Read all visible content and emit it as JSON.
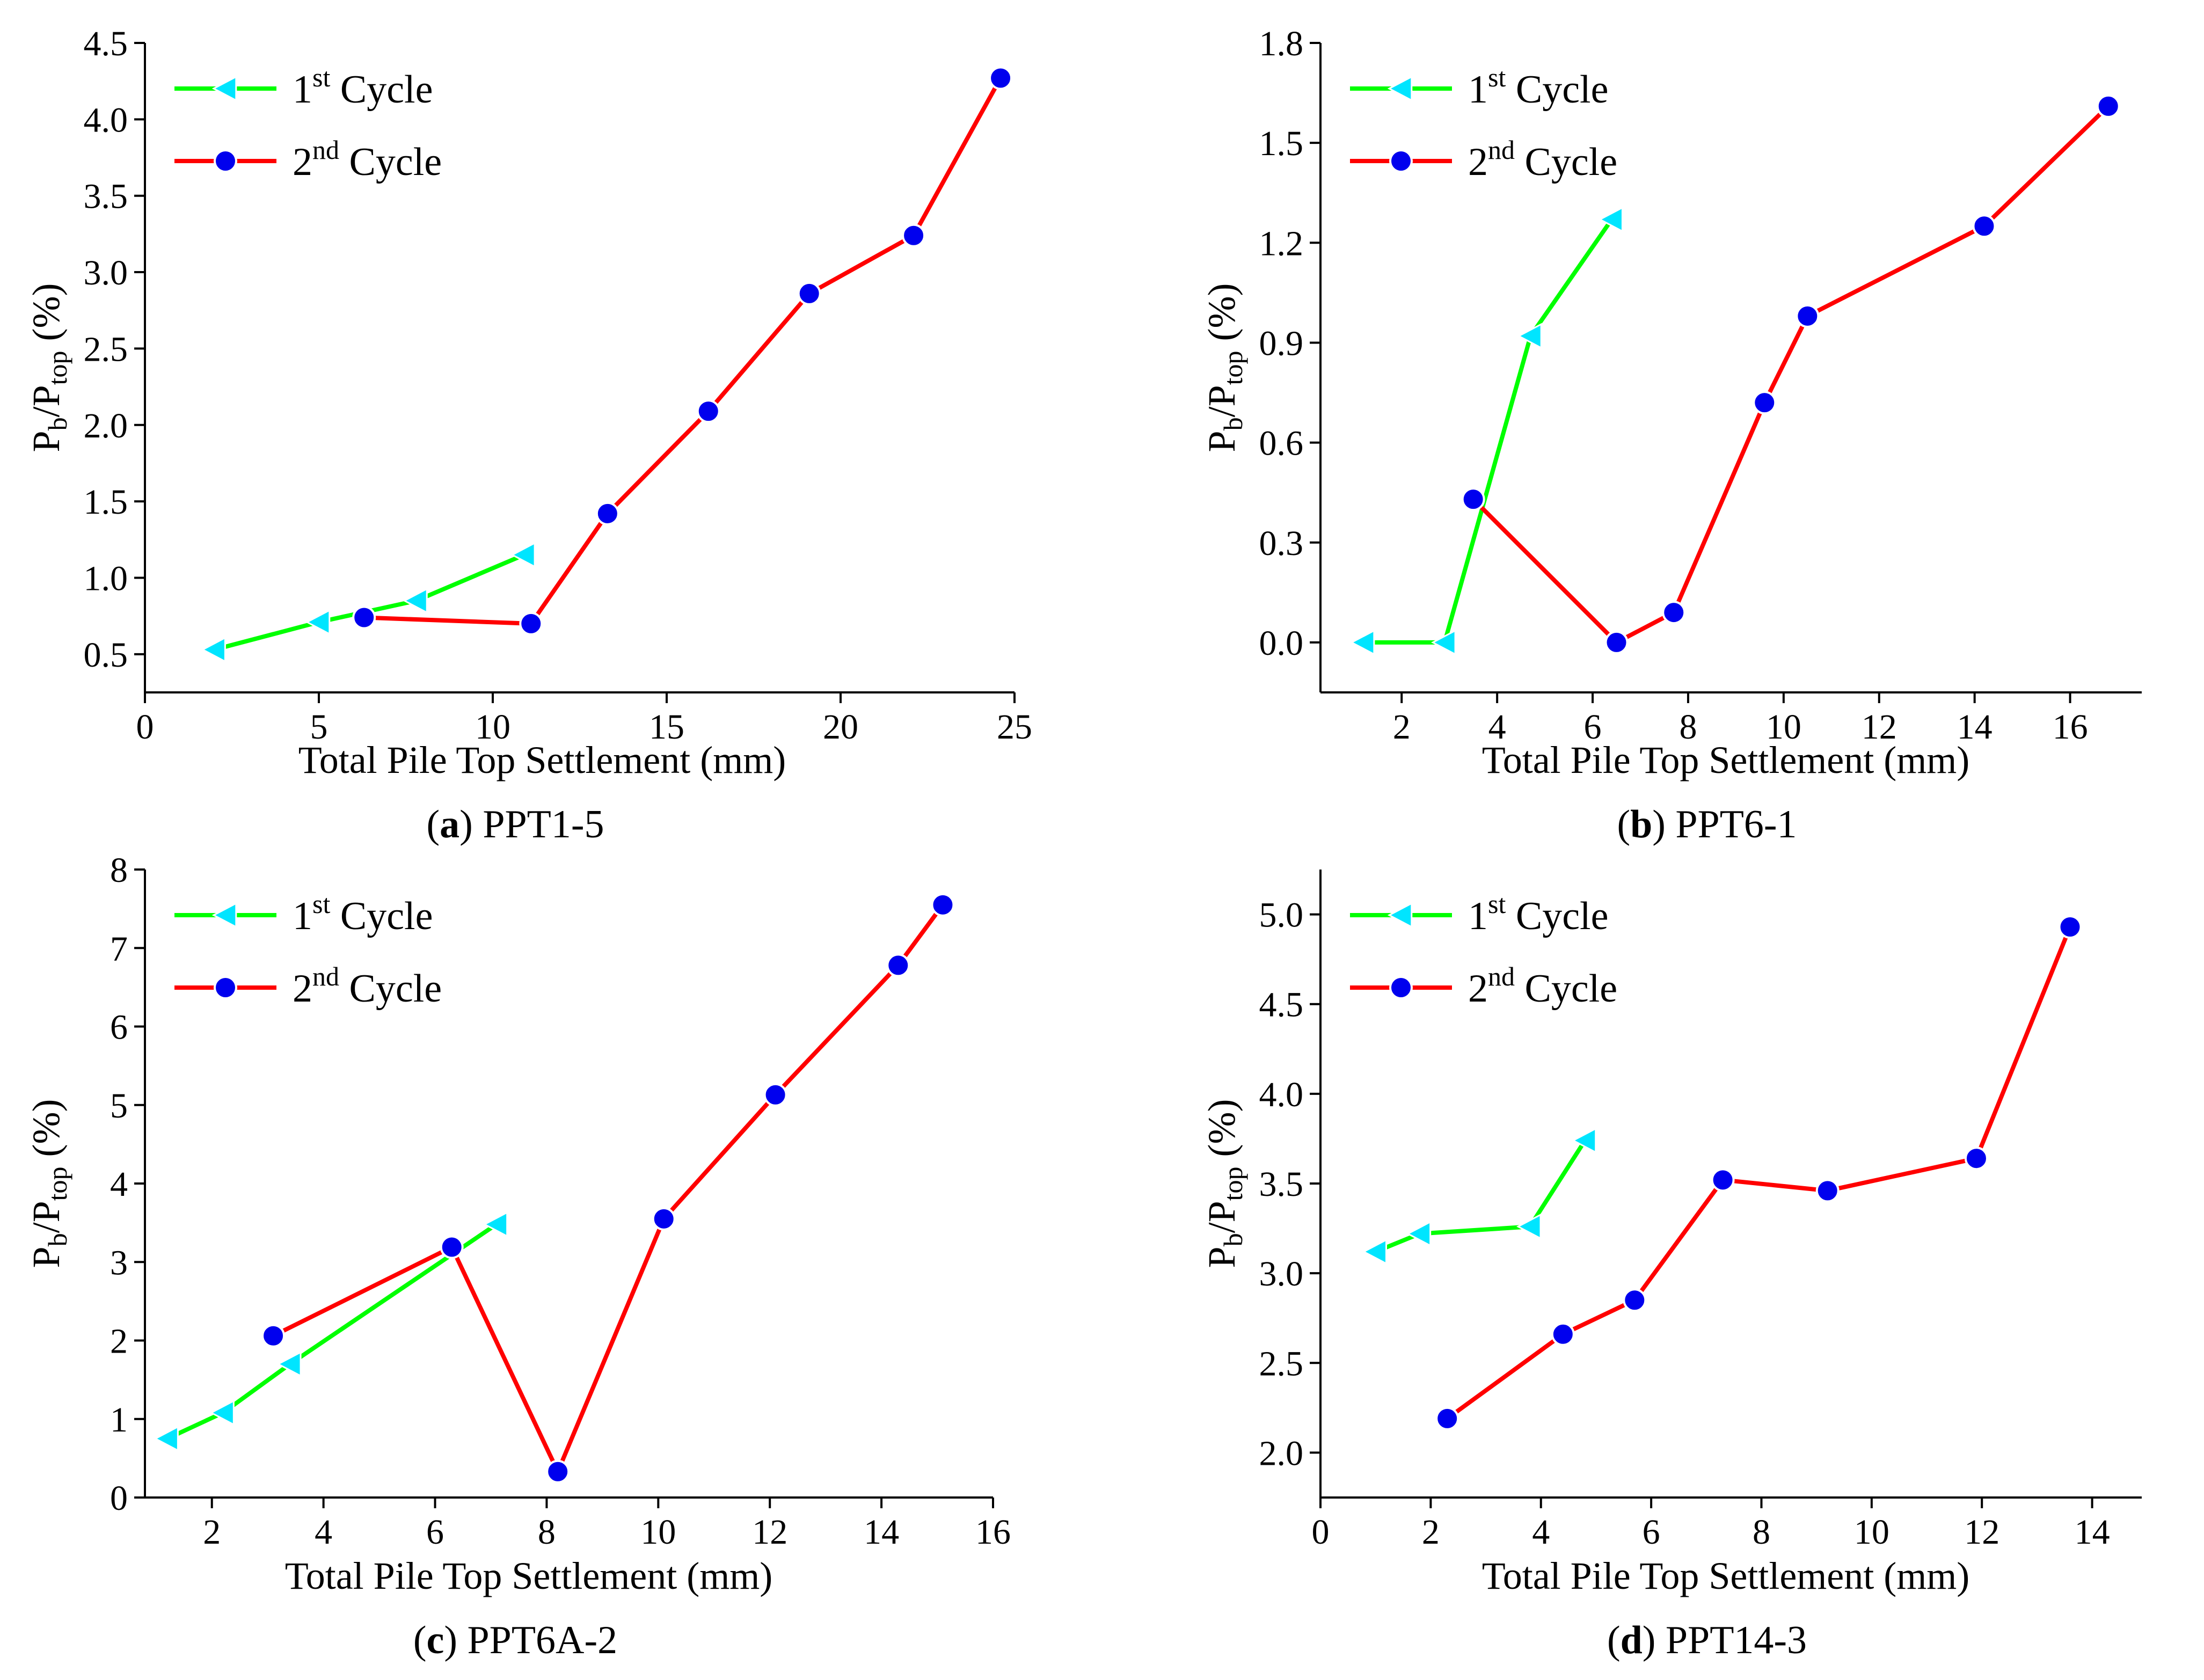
{
  "colors": {
    "cycle1_line": "#00ff00",
    "cycle1_marker": "#00e5ff",
    "cycle2_line": "#ff0000",
    "cycle2_marker": "#0000ee"
  },
  "chart_data": [
    {
      "id": "a",
      "type": "line",
      "caption_letter": "(a)",
      "caption_name": "PPT1-5",
      "xlabel": "Total Pile Top Settlement (mm)",
      "ylabel": {
        "main": "P",
        "sub1": "b",
        "sep": "/P",
        "sub2": "top",
        "unit": " (%)"
      },
      "xlim": [
        0,
        25
      ],
      "ylim": [
        0.25,
        4.5
      ],
      "xticks": [
        0,
        5,
        10,
        15,
        20,
        25
      ],
      "xtick_labels": [
        "0",
        "5",
        "10",
        "15",
        "20",
        "25"
      ],
      "yticks": [
        0.5,
        1.0,
        1.5,
        2.0,
        2.5,
        3.0,
        3.5,
        4.0,
        4.5
      ],
      "ytick_labels": [
        "0.5",
        "1.0",
        "1.5",
        "2.0",
        "2.5",
        "3.0",
        "3.5",
        "4.0",
        "4.5"
      ],
      "legend": {
        "position": "top-left",
        "entries": [
          {
            "base": "1",
            "sup": "st",
            "text": " Cycle"
          },
          {
            "base": "2",
            "sup": "nd",
            "text": " Cycle"
          }
        ]
      },
      "series": [
        {
          "name": "1st Cycle",
          "marker": "triangle-left",
          "x": [
            2.0,
            5.0,
            7.8,
            10.9
          ],
          "y": [
            0.53,
            0.71,
            0.85,
            1.15
          ]
        },
        {
          "name": "2nd Cycle",
          "marker": "circle",
          "x": [
            6.3,
            11.1,
            13.3,
            16.2,
            19.1,
            22.1,
            24.6
          ],
          "y": [
            0.74,
            0.7,
            1.42,
            2.09,
            2.86,
            3.24,
            4.27
          ]
        }
      ]
    },
    {
      "id": "b",
      "type": "line",
      "caption_letter": "(b)",
      "caption_name": "PPT6-1",
      "xlabel": "Total Pile Top Settlement (mm)",
      "ylabel": {
        "main": "P",
        "sub1": "b",
        "sep": "/P",
        "sub2": "top",
        "unit": " (%)"
      },
      "xlim": [
        0.3,
        17.5
      ],
      "ylim": [
        -0.15,
        1.8
      ],
      "xticks": [
        2,
        4,
        6,
        8,
        10,
        12,
        14,
        16
      ],
      "xtick_labels": [
        "2",
        "4",
        "6",
        "8",
        "10",
        "12",
        "14",
        "16"
      ],
      "yticks": [
        0.0,
        0.3,
        0.6,
        0.9,
        1.2,
        1.5,
        1.8
      ],
      "ytick_labels": [
        "0.0",
        "0.3",
        "0.6",
        "0.9",
        "1.2",
        "1.5",
        "1.8"
      ],
      "legend": {
        "position": "top-left",
        "entries": [
          {
            "base": "1",
            "sup": "st",
            "text": " Cycle"
          },
          {
            "base": "2",
            "sup": "nd",
            "text": " Cycle"
          }
        ]
      },
      "series": [
        {
          "name": "1st Cycle",
          "marker": "triangle-left",
          "x": [
            1.2,
            2.9,
            4.7,
            6.4
          ],
          "y": [
            0.0,
            0.0,
            0.92,
            1.27
          ]
        },
        {
          "name": "2nd Cycle",
          "marker": "circle",
          "x": [
            3.5,
            6.5,
            7.7,
            9.6,
            10.5,
            14.2,
            16.8
          ],
          "y": [
            0.43,
            0.0,
            0.09,
            0.72,
            0.98,
            1.25,
            1.61
          ]
        }
      ]
    },
    {
      "id": "c",
      "type": "line",
      "caption_letter": "(c)",
      "caption_name": "PPT6A-2",
      "xlabel": "Total Pile Top Settlement (mm)",
      "ylabel": {
        "main": "P",
        "sub1": "b",
        "sep": "/P",
        "sub2": "top",
        "unit": " (%)"
      },
      "xlim": [
        0.8,
        16
      ],
      "ylim": [
        0,
        8
      ],
      "xticks": [
        2,
        4,
        6,
        8,
        10,
        12,
        14,
        16
      ],
      "xtick_labels": [
        "2",
        "4",
        "6",
        "8",
        "10",
        "12",
        "14",
        "16"
      ],
      "yticks": [
        0,
        1,
        2,
        3,
        4,
        5,
        6,
        7,
        8
      ],
      "ytick_labels": [
        "0",
        "1",
        "2",
        "3",
        "4",
        "5",
        "6",
        "7",
        "8"
      ],
      "legend": {
        "position": "top-left",
        "entries": [
          {
            "base": "1",
            "sup": "st",
            "text": " Cycle"
          },
          {
            "base": "2",
            "sup": "nd",
            "text": " Cycle"
          }
        ]
      },
      "series": [
        {
          "name": "1st Cycle",
          "marker": "triangle-left",
          "x": [
            1.2,
            2.2,
            3.4,
            7.1
          ],
          "y": [
            0.75,
            1.08,
            1.7,
            3.48
          ]
        },
        {
          "name": "2nd Cycle",
          "marker": "circle",
          "x": [
            3.1,
            6.3,
            8.2,
            10.1,
            12.1,
            14.3,
            15.1
          ],
          "y": [
            2.06,
            3.19,
            0.33,
            3.55,
            5.13,
            6.78,
            7.55
          ]
        }
      ]
    },
    {
      "id": "d",
      "type": "line",
      "caption_letter": "(d)",
      "caption_name": "PPT14-3",
      "xlabel": "Total Pile Top Settlement (mm)",
      "ylabel": {
        "main": "P",
        "sub1": "b",
        "sep": "/P",
        "sub2": "top",
        "unit": " (%)"
      },
      "xlim": [
        0,
        14.9
      ],
      "ylim": [
        1.75,
        5.25
      ],
      "xticks": [
        0,
        2,
        4,
        6,
        8,
        10,
        12,
        14
      ],
      "xtick_labels": [
        "0",
        "2",
        "4",
        "6",
        "8",
        "10",
        "12",
        "14"
      ],
      "yticks": [
        2.0,
        2.5,
        3.0,
        3.5,
        4.0,
        4.5,
        5.0
      ],
      "ytick_labels": [
        "2.0",
        "2.5",
        "3.0",
        "3.5",
        "4.0",
        "4.5",
        "5.0"
      ],
      "legend": {
        "position": "top-left",
        "entries": [
          {
            "base": "1",
            "sup": "st",
            "text": " Cycle"
          },
          {
            "base": "2",
            "sup": "nd",
            "text": " Cycle"
          }
        ]
      },
      "series": [
        {
          "name": "1st Cycle",
          "marker": "triangle-left",
          "x": [
            1.0,
            1.8,
            3.8,
            4.8
          ],
          "y": [
            3.12,
            3.22,
            3.26,
            3.74
          ]
        },
        {
          "name": "2nd Cycle",
          "marker": "circle",
          "x": [
            2.3,
            4.4,
            5.7,
            7.3,
            9.2,
            11.9,
            13.6
          ],
          "y": [
            2.19,
            2.66,
            2.85,
            3.52,
            3.46,
            3.64,
            4.93
          ]
        }
      ]
    }
  ]
}
